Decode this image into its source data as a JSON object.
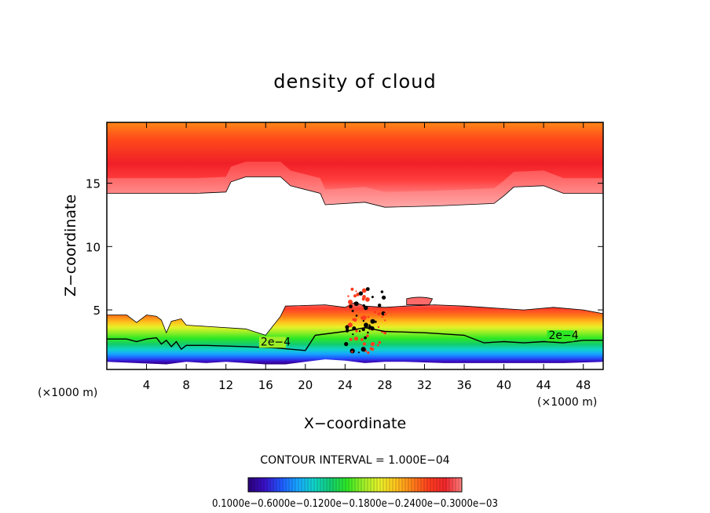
{
  "chart_data": {
    "type": "contour",
    "title": "density of cloud",
    "xlabel": "X−coordinate",
    "ylabel": "Z−coordinate",
    "x_unit_left": "(×1000 m)",
    "x_unit_right": "(×1000 m)",
    "xlim": [
      0,
      50
    ],
    "ylim": [
      0.3,
      19.8
    ],
    "xticks": [
      4,
      8,
      12,
      16,
      20,
      24,
      28,
      32,
      36,
      40,
      44,
      48
    ],
    "yticks": [
      5,
      10,
      15
    ],
    "contour_interval_text": "CONTOUR INTERVAL = 1.000E−04",
    "contour_label": "2e−4",
    "contour_label_positions": [
      [
        15.5,
        2.2
      ],
      [
        44.5,
        2.7
      ]
    ],
    "colorbar_text": "0.1000e−0.6000e−0.1200e−0.1800e−0.2400e−0.3000e−03",
    "colormap": [
      "#2a007a",
      "#3a10c8",
      "#1f58ff",
      "#17a6ff",
      "#10d3c9",
      "#12cc72",
      "#2ee824",
      "#9cef27",
      "#e8f02a",
      "#ffc21c",
      "#ff7f18",
      "#ff3c1e",
      "#f0262c",
      "#ff8080"
    ],
    "upper_band": {
      "bottom": [
        [
          0,
          14.2
        ],
        [
          4,
          14.2
        ],
        [
          9,
          14.2
        ],
        [
          12,
          14.3
        ],
        [
          12.5,
          15.1
        ],
        [
          14,
          15.5
        ],
        [
          17.5,
          15.5
        ],
        [
          18.5,
          14.8
        ],
        [
          21.5,
          14.2
        ],
        [
          22,
          13.3
        ],
        [
          26,
          13.5
        ],
        [
          28,
          13.1
        ],
        [
          33,
          13.2
        ],
        [
          39,
          13.4
        ],
        [
          40,
          14.0
        ],
        [
          41,
          14.7
        ],
        [
          44,
          14.8
        ],
        [
          46,
          14.2
        ],
        [
          50,
          14.2
        ]
      ]
    },
    "lower_layer_top": [
      [
        0,
        4.6
      ],
      [
        2,
        4.6
      ],
      [
        3,
        4.0
      ],
      [
        4,
        4.6
      ],
      [
        5,
        4.5
      ],
      [
        5.5,
        4.2
      ],
      [
        6,
        3.2
      ],
      [
        6.5,
        4.1
      ],
      [
        7.5,
        4.3
      ],
      [
        8,
        3.8
      ],
      [
        10,
        3.7
      ],
      [
        14,
        3.5
      ],
      [
        16,
        3.0
      ],
      [
        17.5,
        4.5
      ],
      [
        18,
        5.3
      ],
      [
        22,
        5.4
      ],
      [
        24,
        5.2
      ],
      [
        25,
        5.6
      ],
      [
        26,
        5.3
      ],
      [
        28,
        5.2
      ],
      [
        30,
        5.3
      ],
      [
        33,
        5.4
      ],
      [
        36,
        5.3
      ],
      [
        38,
        5.2
      ],
      [
        40,
        5.1
      ],
      [
        42,
        5.0
      ],
      [
        45,
        5.2
      ],
      [
        48,
        5.0
      ],
      [
        50,
        4.7
      ]
    ],
    "isoline_2e4": [
      [
        0,
        2.7
      ],
      [
        2,
        2.7
      ],
      [
        3,
        2.5
      ],
      [
        4,
        2.7
      ],
      [
        5,
        2.8
      ],
      [
        5.5,
        2.3
      ],
      [
        6,
        2.6
      ],
      [
        6.5,
        2.1
      ],
      [
        7,
        2.5
      ],
      [
        7.5,
        1.9
      ],
      [
        8,
        2.2
      ],
      [
        10,
        2.2
      ],
      [
        14,
        2.1
      ],
      [
        17,
        2.0
      ],
      [
        18.5,
        1.9
      ],
      [
        20,
        1.8
      ],
      [
        21,
        3.0
      ],
      [
        24,
        3.3
      ],
      [
        26,
        3.6
      ],
      [
        28,
        3.3
      ],
      [
        32,
        3.2
      ],
      [
        36,
        3.0
      ],
      [
        38,
        2.4
      ],
      [
        40,
        2.5
      ],
      [
        42,
        2.4
      ],
      [
        44,
        2.5
      ],
      [
        46,
        2.4
      ],
      [
        48,
        2.6
      ],
      [
        50,
        2.6
      ]
    ],
    "cloud_base": [
      [
        0,
        0.9
      ],
      [
        3,
        0.8
      ],
      [
        6,
        0.7
      ],
      [
        8,
        0.9
      ],
      [
        10,
        0.8
      ],
      [
        12,
        0.9
      ],
      [
        14,
        0.8
      ],
      [
        16,
        0.7
      ],
      [
        18,
        0.7
      ],
      [
        20,
        0.9
      ],
      [
        22,
        1.1
      ],
      [
        24,
        1.0
      ],
      [
        26,
        0.8
      ],
      [
        28,
        0.9
      ],
      [
        30,
        0.9
      ],
      [
        34,
        0.8
      ],
      [
        38,
        0.8
      ],
      [
        42,
        0.8
      ],
      [
        46,
        0.8
      ],
      [
        50,
        0.9
      ]
    ],
    "isolated_blob": {
      "x": [
        30.2,
        32.8
      ],
      "z": [
        5.4,
        6.0
      ]
    }
  }
}
